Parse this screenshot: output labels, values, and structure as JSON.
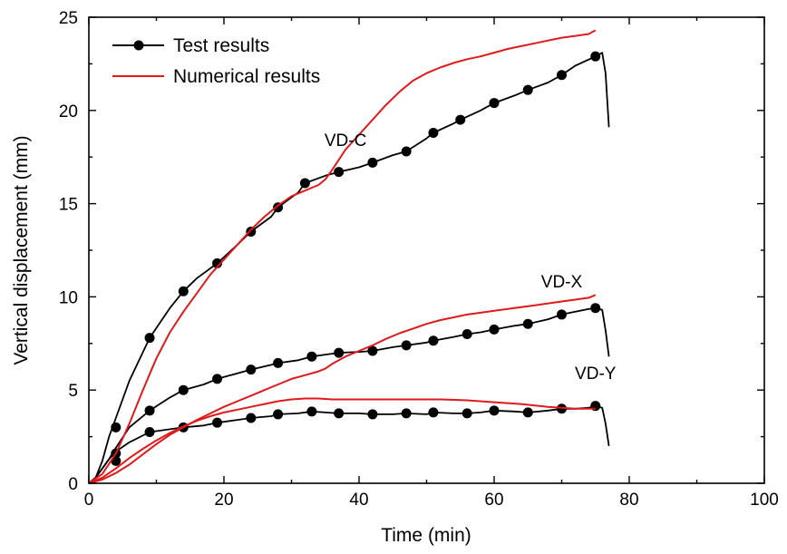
{
  "chart_data": {
    "type": "line",
    "title": "",
    "xlabel": "Time (min)",
    "ylabel": "Vertical displacement (mm)",
    "xlim": [
      0,
      100
    ],
    "ylim": [
      0,
      25
    ],
    "xticks": [
      0,
      20,
      40,
      60,
      80,
      100
    ],
    "yticks": [
      0,
      5,
      10,
      15,
      20,
      25
    ],
    "grid": false,
    "legend": {
      "position": "top-left",
      "entries": [
        {
          "label": "Test results",
          "color": "#000000",
          "marker": "circle"
        },
        {
          "label": "Numerical results",
          "color": "#e0191b",
          "marker": "none"
        }
      ]
    },
    "annotations": [
      {
        "text": "VD-C",
        "x": 38,
        "y": 18.1
      },
      {
        "text": "VD-X",
        "x": 70,
        "y": 10.5
      },
      {
        "text": "VD-Y",
        "x": 75,
        "y": 5.6
      }
    ],
    "series": [
      {
        "name": "Test results",
        "group": "VD-C",
        "color": "#000000",
        "kind": "test",
        "x": [
          0,
          1,
          2,
          3,
          4,
          6,
          9,
          12,
          14,
          16,
          19,
          22,
          24,
          27,
          28,
          31,
          32,
          35,
          37,
          40,
          42,
          45,
          47,
          50,
          51,
          54,
          55,
          58,
          60,
          63,
          65,
          68,
          70,
          72,
          75,
          76,
          76.5,
          77
        ],
        "y": [
          0,
          0.3,
          1.2,
          2.5,
          3.5,
          5.5,
          7.8,
          9.4,
          10.3,
          11.0,
          11.8,
          12.8,
          13.5,
          14.3,
          14.8,
          15.6,
          16.1,
          16.5,
          16.7,
          16.95,
          17.2,
          17.6,
          17.8,
          18.5,
          18.8,
          19.3,
          19.5,
          20.0,
          20.4,
          20.8,
          21.1,
          21.5,
          21.9,
          22.4,
          22.9,
          23.1,
          22.0,
          19.1
        ],
        "markers_x": [
          4,
          9,
          14,
          19,
          24,
          28,
          32,
          37,
          42,
          47,
          51,
          55,
          60,
          65,
          70,
          75
        ],
        "markers_y": [
          3.0,
          7.8,
          10.3,
          11.8,
          13.5,
          14.8,
          16.1,
          16.7,
          17.2,
          17.8,
          18.8,
          19.5,
          20.4,
          21.1,
          21.9,
          22.9
        ]
      },
      {
        "name": "Test results",
        "group": "VD-X",
        "color": "#000000",
        "kind": "test",
        "x": [
          0,
          1,
          2,
          3,
          4,
          6,
          9,
          12,
          14,
          17,
          19,
          22,
          24,
          27,
          28,
          31,
          33,
          35,
          37,
          40,
          42,
          45,
          47,
          50,
          51,
          54,
          56,
          58,
          60,
          63,
          65,
          68,
          70,
          72,
          74,
          75,
          76,
          76.5,
          77
        ],
        "y": [
          0,
          0.3,
          0.8,
          1.3,
          1.9,
          3.0,
          3.9,
          4.6,
          5.0,
          5.3,
          5.6,
          5.9,
          6.1,
          6.35,
          6.45,
          6.6,
          6.8,
          6.9,
          7.0,
          7.05,
          7.1,
          7.3,
          7.4,
          7.55,
          7.65,
          7.85,
          8.0,
          8.1,
          8.25,
          8.45,
          8.55,
          8.8,
          9.05,
          9.2,
          9.35,
          9.4,
          9.3,
          8.2,
          6.8
        ],
        "markers_x": [
          4,
          9,
          14,
          19,
          24,
          28,
          33,
          37,
          42,
          47,
          51,
          56,
          60,
          65,
          70,
          75
        ],
        "markers_y": [
          1.2,
          3.9,
          5.0,
          5.6,
          6.1,
          6.45,
          6.8,
          7.0,
          7.1,
          7.4,
          7.65,
          8.0,
          8.25,
          8.55,
          9.05,
          9.4
        ]
      },
      {
        "name": "Test results",
        "group": "VD-Y",
        "color": "#000000",
        "kind": "test",
        "x": [
          0,
          1,
          2,
          3,
          4,
          6,
          9,
          12,
          14,
          17,
          19,
          22,
          24,
          27,
          28,
          31,
          33,
          35,
          37,
          40,
          42,
          45,
          47,
          50,
          51,
          54,
          56,
          58,
          60,
          63,
          65,
          68,
          70,
          72,
          74,
          75,
          76,
          76.5,
          77
        ],
        "y": [
          0,
          0.3,
          0.8,
          1.3,
          1.7,
          2.2,
          2.75,
          2.9,
          3.0,
          3.1,
          3.25,
          3.4,
          3.5,
          3.6,
          3.7,
          3.75,
          3.85,
          3.8,
          3.75,
          3.75,
          3.7,
          3.7,
          3.75,
          3.7,
          3.8,
          3.75,
          3.75,
          3.8,
          3.9,
          3.85,
          3.8,
          3.9,
          4.0,
          4.0,
          4.05,
          4.15,
          4.05,
          3.2,
          2.0
        ],
        "markers_x": [
          4,
          9,
          14,
          19,
          24,
          28,
          33,
          37,
          42,
          47,
          51,
          56,
          60,
          65,
          70,
          75
        ],
        "markers_y": [
          1.6,
          2.75,
          3.0,
          3.25,
          3.5,
          3.7,
          3.85,
          3.75,
          3.7,
          3.75,
          3.8,
          3.75,
          3.9,
          3.8,
          4.0,
          4.15
        ]
      },
      {
        "name": "Numerical results",
        "group": "VD-C",
        "color": "#e0191b",
        "kind": "numerical",
        "x": [
          0,
          2,
          4,
          6,
          8,
          10,
          12,
          14,
          16,
          18,
          20,
          22,
          24,
          26,
          28,
          30,
          32,
          34,
          35,
          36,
          38,
          40,
          42,
          44,
          46,
          48,
          50,
          52,
          54,
          56,
          58,
          60,
          62,
          64,
          66,
          68,
          70,
          72,
          74,
          75
        ],
        "y": [
          0,
          0.5,
          1.6,
          3.2,
          5.0,
          6.7,
          8.1,
          9.2,
          10.2,
          11.2,
          12.0,
          12.8,
          13.6,
          14.3,
          14.9,
          15.4,
          15.7,
          16.0,
          16.3,
          16.8,
          17.9,
          18.7,
          19.5,
          20.3,
          21.0,
          21.6,
          22.0,
          22.3,
          22.55,
          22.75,
          22.9,
          23.1,
          23.3,
          23.45,
          23.6,
          23.75,
          23.9,
          24.0,
          24.1,
          24.3
        ]
      },
      {
        "name": "Numerical results",
        "group": "VD-X",
        "color": "#e0191b",
        "kind": "numerical",
        "x": [
          0,
          2,
          4,
          6,
          8,
          10,
          12,
          14,
          16,
          18,
          20,
          22,
          24,
          26,
          28,
          30,
          32,
          34,
          35,
          36,
          38,
          40,
          42,
          44,
          46,
          48,
          50,
          52,
          54,
          56,
          58,
          60,
          62,
          64,
          66,
          68,
          70,
          72,
          74,
          75
        ],
        "y": [
          0,
          0.2,
          0.55,
          1.0,
          1.55,
          2.1,
          2.6,
          3.0,
          3.4,
          3.75,
          4.1,
          4.4,
          4.7,
          5.0,
          5.3,
          5.6,
          5.8,
          6.0,
          6.15,
          6.4,
          6.8,
          7.1,
          7.4,
          7.75,
          8.05,
          8.3,
          8.55,
          8.75,
          8.9,
          9.05,
          9.15,
          9.25,
          9.35,
          9.45,
          9.55,
          9.65,
          9.75,
          9.85,
          9.95,
          10.1
        ]
      },
      {
        "name": "Numerical results",
        "group": "VD-Y",
        "color": "#e0191b",
        "kind": "numerical",
        "x": [
          0,
          2,
          4,
          6,
          8,
          10,
          12,
          14,
          16,
          18,
          20,
          22,
          24,
          26,
          28,
          30,
          32,
          34,
          36,
          40,
          44,
          48,
          52,
          56,
          60,
          64,
          68,
          72,
          75
        ],
        "y": [
          0,
          0.3,
          0.8,
          1.35,
          1.85,
          2.3,
          2.7,
          3.05,
          3.35,
          3.6,
          3.8,
          3.95,
          4.1,
          4.25,
          4.4,
          4.5,
          4.55,
          4.55,
          4.5,
          4.5,
          4.5,
          4.5,
          4.5,
          4.45,
          4.35,
          4.25,
          4.1,
          4.0,
          4.0
        ]
      }
    ]
  }
}
